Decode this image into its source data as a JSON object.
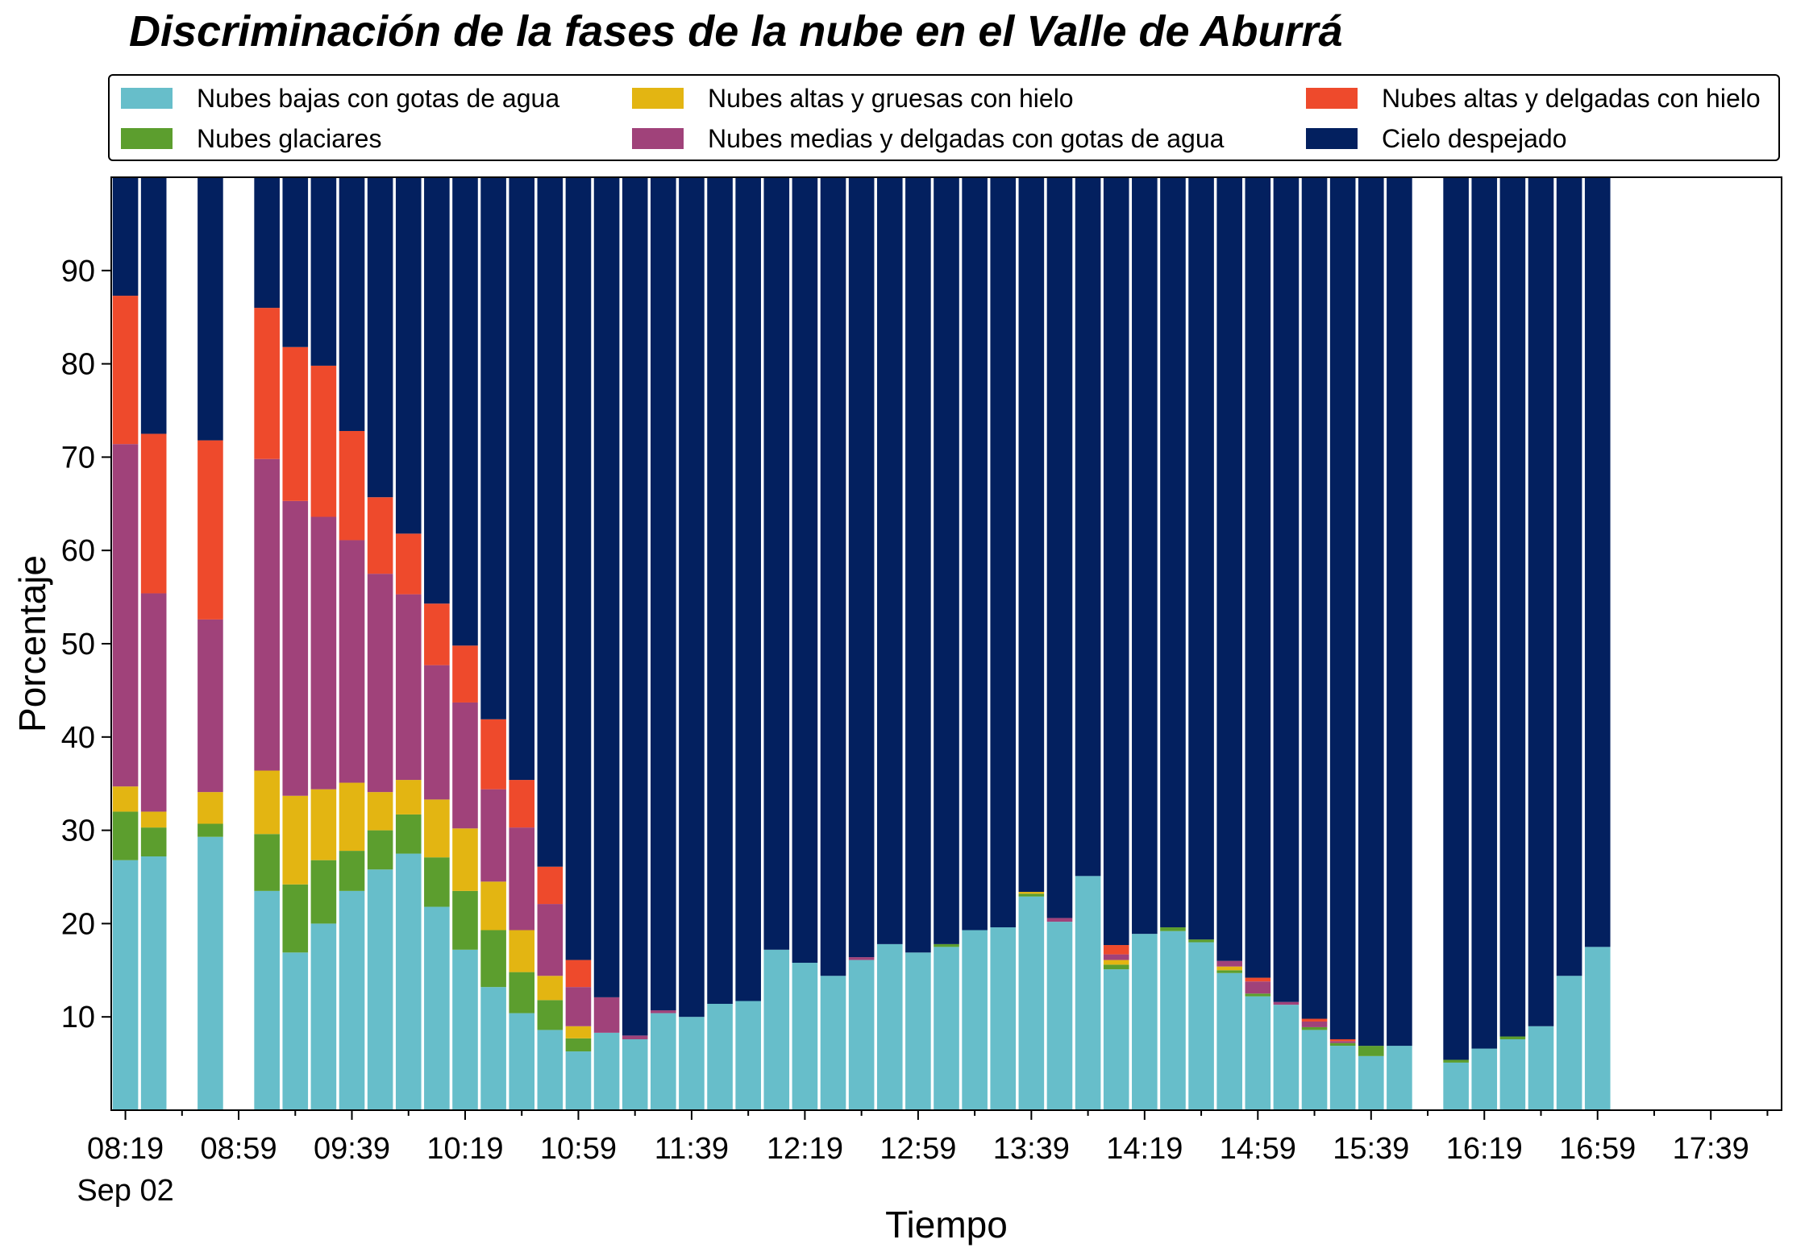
{
  "chart_data": {
    "type": "bar",
    "stacked": true,
    "title": "Discriminación de la fases de la nube en el Valle de Aburrá",
    "xlabel": "Tiempo",
    "ylabel": "Porcentaje",
    "ylim": [
      0,
      100
    ],
    "yticks": [
      "10",
      "20",
      "30",
      "40",
      "50",
      "60",
      "70",
      "80",
      "90"
    ],
    "xticks": [
      "08:19",
      "08:59",
      "09:39",
      "10:19",
      "10:59",
      "11:39",
      "12:19",
      "12:59",
      "13:39",
      "14:19",
      "14:59",
      "15:39",
      "16:19",
      "16:59",
      "17:39"
    ],
    "xtick_sublabel": "Sep 02",
    "legend_position": "top",
    "time_start": "08:19",
    "time_step_minutes": 10,
    "slots": 59,
    "categories": [
      "08:19",
      "08:29",
      "08:49",
      "09:09",
      "09:19",
      "09:29",
      "09:39",
      "09:49",
      "09:59",
      "10:09",
      "10:19",
      "10:29",
      "10:39",
      "10:49",
      "10:59",
      "11:09",
      "11:19",
      "11:29",
      "11:39",
      "11:49",
      "11:59",
      "12:09",
      "12:19",
      "12:29",
      "12:39",
      "12:49",
      "12:59",
      "13:09",
      "13:19",
      "13:29",
      "13:39",
      "13:49",
      "13:59",
      "14:09",
      "14:19",
      "14:29",
      "14:39",
      "14:49",
      "14:59",
      "15:09",
      "15:19",
      "15:29",
      "15:39",
      "15:49",
      "16:09",
      "16:19",
      "16:29",
      "16:39",
      "16:49",
      "16:59"
    ],
    "series": [
      {
        "name": "Nubes bajas con gotas de agua",
        "color": "#67BECA",
        "values": [
          26.8,
          27.2,
          29.3,
          23.5,
          16.9,
          20.0,
          23.5,
          25.8,
          27.5,
          21.8,
          17.2,
          13.2,
          10.4,
          8.6,
          6.3,
          8.3,
          7.6,
          10.4,
          10.0,
          11.4,
          11.7,
          17.2,
          15.8,
          14.4,
          16.1,
          17.8,
          16.9,
          17.5,
          19.3,
          19.6,
          22.9,
          20.2,
          25.1,
          15.1,
          18.9,
          19.2,
          18.0,
          14.7,
          12.2,
          11.3,
          8.6,
          6.9,
          5.8,
          6.9,
          5.1,
          6.6,
          7.6,
          9.0,
          14.4,
          17.5
        ]
      },
      {
        "name": "Nubes glaciares",
        "color": "#5C9E2E",
        "values": [
          5.2,
          3.1,
          1.4,
          6.1,
          7.3,
          6.8,
          4.3,
          4.2,
          4.2,
          5.3,
          6.3,
          6.1,
          4.4,
          3.2,
          1.4,
          0,
          0,
          0,
          0,
          0,
          0,
          0,
          0,
          0,
          0,
          0,
          0,
          0.3,
          0,
          0,
          0.3,
          0,
          0,
          0.5,
          0,
          0.4,
          0.3,
          0.3,
          0.3,
          0,
          0.3,
          0.3,
          1.1,
          0,
          0.3,
          0,
          0.3,
          0,
          0,
          0
        ]
      },
      {
        "name": "Nubes altas y gruesas con hielo",
        "color": "#E3B512",
        "values": [
          2.7,
          1.7,
          3.4,
          6.8,
          9.5,
          7.6,
          7.3,
          4.1,
          3.7,
          6.2,
          6.7,
          5.2,
          4.5,
          2.6,
          1.3,
          0,
          0,
          0,
          0,
          0,
          0,
          0,
          0,
          0,
          0,
          0,
          0,
          0,
          0,
          0,
          0.2,
          0,
          0,
          0.5,
          0,
          0,
          0,
          0.4,
          0,
          0,
          0,
          0,
          0,
          0,
          0,
          0,
          0,
          0,
          0,
          0
        ]
      },
      {
        "name": "Nubes medias y delgadas con gotas de agua",
        "color": "#A0427A",
        "values": [
          36.7,
          23.4,
          18.5,
          33.4,
          31.6,
          29.2,
          26.0,
          23.4,
          19.9,
          14.4,
          13.5,
          9.9,
          11.0,
          7.7,
          4.2,
          3.8,
          0.4,
          0.3,
          0,
          0,
          0,
          0,
          0,
          0,
          0.3,
          0,
          0,
          0,
          0,
          0,
          0,
          0.4,
          0,
          0.6,
          0,
          0,
          0,
          0.6,
          1.3,
          0.3,
          0.6,
          0.2,
          0,
          0,
          0,
          0,
          0,
          0,
          0,
          0
        ]
      },
      {
        "name": "Nubes altas y delgadas con hielo",
        "color": "#EE4A2C",
        "values": [
          15.9,
          17.1,
          19.2,
          16.2,
          16.5,
          16.2,
          11.7,
          8.2,
          6.5,
          6.6,
          6.1,
          7.5,
          5.1,
          4.0,
          2.9,
          0,
          0,
          0,
          0,
          0,
          0,
          0,
          0,
          0,
          0,
          0,
          0,
          0,
          0,
          0,
          0,
          0,
          0,
          1.0,
          0,
          0,
          0,
          0,
          0.4,
          0,
          0.3,
          0.2,
          0,
          0,
          0,
          0,
          0,
          0,
          0,
          0
        ]
      },
      {
        "name": "Cielo despejado",
        "color": "#03205F",
        "values": [
          12.7,
          27.5,
          28.2,
          14.0,
          18.2,
          20.2,
          27.2,
          34.3,
          38.2,
          45.7,
          50.2,
          58.1,
          64.6,
          73.9,
          83.9,
          87.9,
          92.0,
          89.3,
          90.0,
          88.6,
          88.3,
          82.8,
          84.2,
          85.6,
          83.6,
          82.2,
          83.1,
          82.2,
          80.7,
          80.4,
          76.6,
          79.4,
          74.9,
          82.3,
          81.1,
          80.4,
          81.7,
          84.0,
          85.8,
          88.4,
          90.2,
          92.4,
          93.1,
          93.1,
          94.6,
          93.4,
          92.1,
          91.0,
          85.6,
          82.5
        ]
      }
    ]
  }
}
